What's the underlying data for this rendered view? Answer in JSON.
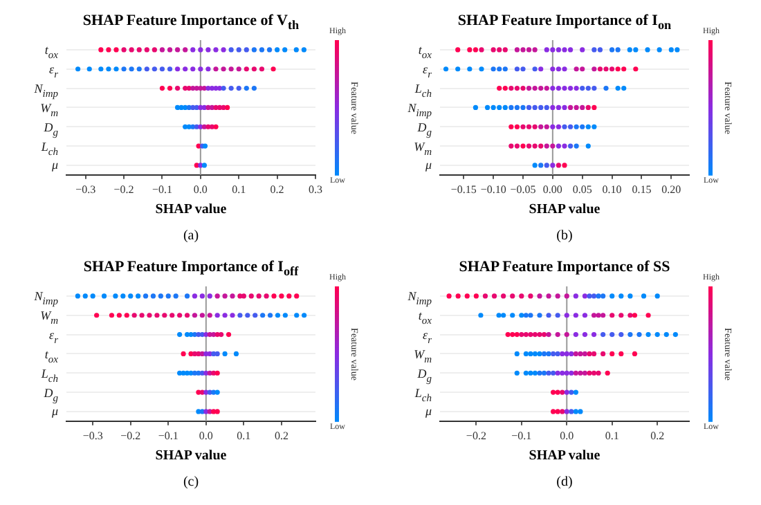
{
  "chart_data": [
    {
      "type": "scatter",
      "orientation": "horizontal",
      "title": "SHAP Feature Importance of V$_{th}$",
      "xlabel": "SHAP value",
      "clabel": "Feature value",
      "annotations": [
        "High",
        "Low",
        "(a)"
      ],
      "marker": "circle",
      "grid": "y",
      "categories": [
        "t$_{ox}$",
        "ε$_{r}$",
        "N$_{imp}$",
        "W$_{m}$",
        "D$_{g}$",
        "L$_{ch}$",
        "μ"
      ],
      "xlim": [
        -0.35,
        0.3
      ],
      "xticks": [
        {
          "value": -0.3,
          "label": "−0.3"
        },
        {
          "value": -0.2,
          "label": "−0.2"
        },
        {
          "value": -0.1,
          "label": "−0.1"
        },
        {
          "value": 0,
          "label": "0.0"
        },
        {
          "value": 0.1,
          "label": "0.1"
        },
        {
          "value": 0.2,
          "label": "0.2"
        },
        {
          "value": 0.3,
          "label": "0.3"
        }
      ],
      "ref_lines": [
        {
          "axis": "x",
          "value": 0,
          "color": "#999999"
        }
      ],
      "series": [
        {
          "x": [
            "t$_{ox}$",
            "t$_{ox}$",
            "t$_{ox}$",
            "t$_{ox}$",
            "t$_{ox}$",
            "t$_{ox}$",
            "t$_{ox}$",
            "t$_{ox}$",
            "t$_{ox}$",
            "t$_{ox}$",
            "t$_{ox}$",
            "t$_{ox}$",
            "t$_{ox}$",
            "t$_{ox}$",
            "t$_{ox}$",
            "t$_{ox}$",
            "t$_{ox}$",
            "t$_{ox}$",
            "t$_{ox}$",
            "t$_{ox}$",
            "t$_{ox}$",
            "t$_{ox}$",
            "t$_{ox}$",
            "t$_{ox}$",
            "t$_{ox}$",
            "t$_{ox}$",
            "t$_{ox}$"
          ],
          "values": [
            -0.26,
            -0.24,
            -0.22,
            -0.2,
            -0.18,
            -0.16,
            -0.14,
            -0.12,
            -0.1,
            -0.08,
            -0.06,
            -0.04,
            -0.02,
            0.0,
            0.02,
            0.04,
            0.06,
            0.08,
            0.1,
            0.12,
            0.14,
            0.16,
            0.18,
            0.2,
            0.22,
            0.25,
            0.27
          ],
          "colors": [
            "#ff0052",
            "#ff0052",
            "#ff0052",
            "#e8096f",
            "#e8096f",
            "#e8096f",
            "#e8096f",
            "#e8096f",
            "#c5169a",
            "#c5169a",
            "#c5169a",
            "#c5169a",
            "#8a2ce2",
            "#8a2ce2",
            "#8a2ce2",
            "#8a2ce2",
            "#8a2ce2",
            "#455bef",
            "#455bef",
            "#455bef",
            "#1c77f6",
            "#1c77f6",
            "#1c77f6",
            "#008afb",
            "#008afb",
            "#008afb",
            "#008afb"
          ]
        },
        {
          "x": [
            "ε$_{r}$",
            "ε$_{r}$",
            "ε$_{r}$",
            "ε$_{r}$",
            "ε$_{r}$",
            "ε$_{r}$",
            "ε$_{r}$",
            "ε$_{r}$",
            "ε$_{r}$",
            "ε$_{r}$",
            "ε$_{r}$",
            "ε$_{r}$",
            "ε$_{r}$",
            "ε$_{r}$",
            "ε$_{r}$",
            "ε$_{r}$",
            "ε$_{r}$",
            "ε$_{r}$",
            "ε$_{r}$",
            "ε$_{r}$",
            "ε$_{r}$",
            "ε$_{r}$",
            "ε$_{r}$",
            "ε$_{r}$",
            "ε$_{r}$"
          ],
          "values": [
            -0.32,
            -0.29,
            -0.26,
            -0.24,
            -0.22,
            -0.2,
            -0.18,
            -0.16,
            -0.14,
            -0.12,
            -0.1,
            -0.08,
            -0.06,
            -0.04,
            -0.02,
            0.0,
            0.02,
            0.04,
            0.06,
            0.08,
            0.1,
            0.12,
            0.14,
            0.16,
            0.19
          ],
          "colors": [
            "#008afb",
            "#008afb",
            "#008afb",
            "#008afb",
            "#008afb",
            "#1c77f6",
            "#1c77f6",
            "#1c77f6",
            "#455bef",
            "#455bef",
            "#455bef",
            "#455bef",
            "#8a2ce2",
            "#8a2ce2",
            "#8a2ce2",
            "#8a2ce2",
            "#8a2ce2",
            "#c5169a",
            "#c5169a",
            "#c5169a",
            "#c5169a",
            "#e8096f",
            "#e8096f",
            "#e8096f",
            "#ff0052"
          ]
        },
        {
          "x": [
            "N$_{imp}$",
            "N$_{imp}$",
            "N$_{imp}$",
            "N$_{imp}$",
            "N$_{imp}$",
            "N$_{imp}$",
            "N$_{imp}$",
            "N$_{imp}$",
            "N$_{imp}$",
            "N$_{imp}$",
            "N$_{imp}$",
            "N$_{imp}$",
            "N$_{imp}$",
            "N$_{imp}$",
            "N$_{imp}$",
            "N$_{imp}$",
            "N$_{imp}$",
            "N$_{imp}$"
          ],
          "values": [
            -0.1,
            -0.08,
            -0.06,
            -0.04,
            -0.03,
            -0.02,
            -0.01,
            0.0,
            0.01,
            0.02,
            0.03,
            0.04,
            0.05,
            0.06,
            0.08,
            0.1,
            0.12,
            0.14
          ],
          "colors": [
            "#ff0052",
            "#ff0052",
            "#e8096f",
            "#e8096f",
            "#e8096f",
            "#c5169a",
            "#c5169a",
            "#c5169a",
            "#c5169a",
            "#8a2ce2",
            "#8a2ce2",
            "#8a2ce2",
            "#8a2ce2",
            "#455bef",
            "#455bef",
            "#455bef",
            "#1c77f6",
            "#1c77f6"
          ]
        },
        {
          "x": [
            "W$_{m}$",
            "W$_{m}$",
            "W$_{m}$",
            "W$_{m}$",
            "W$_{m}$",
            "W$_{m}$",
            "W$_{m}$",
            "W$_{m}$",
            "W$_{m}$",
            "W$_{m}$",
            "W$_{m}$",
            "W$_{m}$",
            "W$_{m}$",
            "W$_{m}$"
          ],
          "values": [
            -0.06,
            -0.05,
            -0.04,
            -0.03,
            -0.02,
            -0.01,
            0.0,
            0.01,
            0.02,
            0.03,
            0.04,
            0.05,
            0.06,
            0.07
          ],
          "colors": [
            "#008afb",
            "#008afb",
            "#008afb",
            "#1c77f6",
            "#455bef",
            "#455bef",
            "#8a2ce2",
            "#8a2ce2",
            "#c5169a",
            "#c5169a",
            "#e8096f",
            "#e8096f",
            "#e8096f",
            "#ff0052"
          ]
        },
        {
          "x": [
            "D$_{g}$",
            "D$_{g}$",
            "D$_{g}$",
            "D$_{g}$",
            "D$_{g}$",
            "D$_{g}$",
            "D$_{g}$",
            "D$_{g}$",
            "D$_{g}$"
          ],
          "values": [
            -0.04,
            -0.03,
            -0.02,
            -0.01,
            0.0,
            0.01,
            0.02,
            0.03,
            0.04
          ],
          "colors": [
            "#008afb",
            "#008afb",
            "#1c77f6",
            "#455bef",
            "#8a2ce2",
            "#c5169a",
            "#e8096f",
            "#e8096f",
            "#ff0052"
          ]
        },
        {
          "x": [
            "L$_{ch}$",
            "L$_{ch}$",
            "L$_{ch}$"
          ],
          "values": [
            -0.005,
            0.005,
            0.012
          ],
          "colors": [
            "#ff0052",
            "#455bef",
            "#008afb"
          ]
        },
        {
          "x": [
            "μ",
            "μ",
            "μ"
          ],
          "values": [
            -0.01,
            0.0,
            0.01
          ],
          "colors": [
            "#ff0052",
            "#8a2ce2",
            "#008afb"
          ]
        }
      ]
    },
    {
      "type": "scatter",
      "orientation": "horizontal",
      "title": "SHAP Feature Importance of I$_{on}$",
      "xlabel": "SHAP value",
      "clabel": "Feature value",
      "annotations": [
        "High",
        "Low",
        "(b)"
      ],
      "marker": "circle",
      "grid": "y",
      "categories": [
        "t$_{ox}$",
        "ε$_{r}$",
        "L$_{ch}$",
        "N$_{imp}$",
        "D$_{g}$",
        "W$_{m}$",
        "μ"
      ],
      "xlim": [
        -0.19,
        0.23
      ],
      "xticks": [
        {
          "value": -0.15,
          "label": "−0.15"
        },
        {
          "value": -0.1,
          "label": "−0.10"
        },
        {
          "value": -0.05,
          "label": "−0.05"
        },
        {
          "value": 0,
          "label": "0.00"
        },
        {
          "value": 0.05,
          "label": "0.05"
        },
        {
          "value": 0.1,
          "label": "0.10"
        },
        {
          "value": 0.15,
          "label": "0.15"
        },
        {
          "value": 0.2,
          "label": "0.20"
        }
      ],
      "ref_lines": [
        {
          "axis": "x",
          "value": 0,
          "color": "#999999"
        }
      ],
      "series": [
        {
          "x": [
            "t$_{ox}$",
            "t$_{ox}$",
            "t$_{ox}$",
            "t$_{ox}$",
            "t$_{ox}$",
            "t$_{ox}$",
            "t$_{ox}$",
            "t$_{ox}$",
            "t$_{ox}$",
            "t$_{ox}$",
            "t$_{ox}$",
            "t$_{ox}$",
            "t$_{ox}$",
            "t$_{ox}$",
            "t$_{ox}$",
            "t$_{ox}$",
            "t$_{ox}$",
            "t$_{ox}$",
            "t$_{ox}$",
            "t$_{ox}$",
            "t$_{ox}$",
            "t$_{ox}$",
            "t$_{ox}$",
            "t$_{ox}$",
            "t$_{ox}$",
            "t$_{ox}$",
            "t$_{ox}$"
          ],
          "values": [
            -0.16,
            -0.14,
            -0.13,
            -0.12,
            -0.1,
            -0.09,
            -0.08,
            -0.06,
            -0.05,
            -0.04,
            -0.03,
            -0.01,
            0.0,
            0.01,
            0.02,
            0.03,
            0.05,
            0.07,
            0.08,
            0.1,
            0.11,
            0.13,
            0.14,
            0.16,
            0.18,
            0.2,
            0.21
          ],
          "colors": [
            "#ff0052",
            "#ff0052",
            "#ff0052",
            "#e8096f",
            "#e8096f",
            "#e8096f",
            "#e8096f",
            "#c5169a",
            "#c5169a",
            "#c5169a",
            "#c5169a",
            "#8a2ce2",
            "#8a2ce2",
            "#8a2ce2",
            "#8a2ce2",
            "#8a2ce2",
            "#8a2ce2",
            "#455bef",
            "#455bef",
            "#1c77f6",
            "#1c77f6",
            "#008afb",
            "#008afb",
            "#008afb",
            "#008afb",
            "#008afb",
            "#008afb"
          ]
        },
        {
          "x": [
            "ε$_{r}$",
            "ε$_{r}$",
            "ε$_{r}$",
            "ε$_{r}$",
            "ε$_{r}$",
            "ε$_{r}$",
            "ε$_{r}$",
            "ε$_{r}$",
            "ε$_{r}$",
            "ε$_{r}$",
            "ε$_{r}$",
            "ε$_{r}$",
            "ε$_{r}$",
            "ε$_{r}$",
            "ε$_{r}$",
            "ε$_{r}$",
            "ε$_{r}$",
            "ε$_{r}$",
            "ε$_{r}$",
            "ε$_{r}$",
            "ε$_{r}$",
            "ε$_{r}$",
            "ε$_{r}$"
          ],
          "values": [
            -0.18,
            -0.16,
            -0.14,
            -0.12,
            -0.1,
            -0.09,
            -0.08,
            -0.06,
            -0.05,
            -0.03,
            -0.02,
            0.0,
            0.01,
            0.02,
            0.04,
            0.05,
            0.07,
            0.08,
            0.09,
            0.1,
            0.11,
            0.12,
            0.14
          ],
          "colors": [
            "#008afb",
            "#008afb",
            "#008afb",
            "#008afb",
            "#1c77f6",
            "#1c77f6",
            "#1c77f6",
            "#455bef",
            "#455bef",
            "#455bef",
            "#8a2ce2",
            "#8a2ce2",
            "#8a2ce2",
            "#8a2ce2",
            "#c5169a",
            "#c5169a",
            "#c5169a",
            "#e8096f",
            "#e8096f",
            "#e8096f",
            "#ff0052",
            "#ff0052",
            "#ff0052"
          ]
        },
        {
          "x": [
            "L$_{ch}$",
            "L$_{ch}$",
            "L$_{ch}$",
            "L$_{ch}$",
            "L$_{ch}$",
            "L$_{ch}$",
            "L$_{ch}$",
            "L$_{ch}$",
            "L$_{ch}$",
            "L$_{ch}$",
            "L$_{ch}$",
            "L$_{ch}$",
            "L$_{ch}$",
            "L$_{ch}$",
            "L$_{ch}$",
            "L$_{ch}$",
            "L$_{ch}$",
            "L$_{ch}$",
            "L$_{ch}$",
            "L$_{ch}$"
          ],
          "values": [
            -0.09,
            -0.08,
            -0.07,
            -0.06,
            -0.05,
            -0.04,
            -0.03,
            -0.02,
            -0.01,
            0.0,
            0.01,
            0.02,
            0.03,
            0.04,
            0.05,
            0.06,
            0.07,
            0.09,
            0.11,
            0.12
          ],
          "colors": [
            "#ff0052",
            "#ff0052",
            "#e8096f",
            "#e8096f",
            "#e8096f",
            "#c5169a",
            "#c5169a",
            "#c5169a",
            "#c5169a",
            "#8a2ce2",
            "#8a2ce2",
            "#8a2ce2",
            "#8a2ce2",
            "#8a2ce2",
            "#455bef",
            "#455bef",
            "#455bef",
            "#1c77f6",
            "#008afb",
            "#008afb"
          ]
        },
        {
          "x": [
            "N$_{imp}$",
            "N$_{imp}$",
            "N$_{imp}$",
            "N$_{imp}$",
            "N$_{imp}$",
            "N$_{imp}$",
            "N$_{imp}$",
            "N$_{imp}$",
            "N$_{imp}$",
            "N$_{imp}$",
            "N$_{imp}$",
            "N$_{imp}$",
            "N$_{imp}$",
            "N$_{imp}$",
            "N$_{imp}$",
            "N$_{imp}$",
            "N$_{imp}$",
            "N$_{imp}$",
            "N$_{imp}$",
            "N$_{imp}$"
          ],
          "values": [
            -0.13,
            -0.11,
            -0.1,
            -0.09,
            -0.08,
            -0.07,
            -0.06,
            -0.05,
            -0.04,
            -0.03,
            -0.02,
            -0.01,
            0.0,
            0.01,
            0.02,
            0.03,
            0.04,
            0.05,
            0.06,
            0.07
          ],
          "colors": [
            "#008afb",
            "#008afb",
            "#008afb",
            "#008afb",
            "#008afb",
            "#1c77f6",
            "#1c77f6",
            "#1c77f6",
            "#455bef",
            "#455bef",
            "#455bef",
            "#455bef",
            "#8a2ce2",
            "#8a2ce2",
            "#8a2ce2",
            "#c5169a",
            "#c5169a",
            "#c5169a",
            "#e8096f",
            "#ff0052"
          ]
        },
        {
          "x": [
            "D$_{g}$",
            "D$_{g}$",
            "D$_{g}$",
            "D$_{g}$",
            "D$_{g}$",
            "D$_{g}$",
            "D$_{g}$",
            "D$_{g}$",
            "D$_{g}$",
            "D$_{g}$",
            "D$_{g}$",
            "D$_{g}$",
            "D$_{g}$",
            "D$_{g}$",
            "D$_{g}$"
          ],
          "values": [
            -0.07,
            -0.06,
            -0.05,
            -0.04,
            -0.03,
            -0.02,
            -0.01,
            0.0,
            0.01,
            0.02,
            0.03,
            0.04,
            0.05,
            0.06,
            0.07
          ],
          "colors": [
            "#ff0052",
            "#ff0052",
            "#e8096f",
            "#e8096f",
            "#e8096f",
            "#c5169a",
            "#c5169a",
            "#8a2ce2",
            "#8a2ce2",
            "#455bef",
            "#455bef",
            "#1c77f6",
            "#1c77f6",
            "#008afb",
            "#008afb"
          ]
        },
        {
          "x": [
            "W$_{m}$",
            "W$_{m}$",
            "W$_{m}$",
            "W$_{m}$",
            "W$_{m}$",
            "W$_{m}$",
            "W$_{m}$",
            "W$_{m}$",
            "W$_{m}$",
            "W$_{m}$",
            "W$_{m}$",
            "W$_{m}$",
            "W$_{m}$"
          ],
          "values": [
            -0.07,
            -0.06,
            -0.05,
            -0.04,
            -0.03,
            -0.02,
            -0.01,
            0.0,
            0.01,
            0.02,
            0.03,
            0.04,
            0.06
          ],
          "colors": [
            "#e8096f",
            "#e8096f",
            "#ff0052",
            "#e8096f",
            "#e8096f",
            "#e8096f",
            "#c5169a",
            "#c5169a",
            "#8a2ce2",
            "#8a2ce2",
            "#455bef",
            "#1c77f6",
            "#008afb"
          ]
        },
        {
          "x": [
            "μ",
            "μ",
            "μ",
            "μ",
            "μ",
            "μ"
          ],
          "values": [
            -0.03,
            -0.02,
            -0.01,
            0.0,
            0.01,
            0.02
          ],
          "colors": [
            "#008afb",
            "#1c77f6",
            "#455bef",
            "#8a2ce2",
            "#e8096f",
            "#ff0052"
          ]
        }
      ]
    },
    {
      "type": "scatter",
      "orientation": "horizontal",
      "title": "SHAP Feature Importance of I$_{off}$",
      "xlabel": "SHAP value",
      "clabel": "Feature value",
      "annotations": [
        "High",
        "Low",
        "(c)"
      ],
      "marker": "circle",
      "grid": "y",
      "categories": [
        "N$_{imp}$",
        "W$_{m}$",
        "ε$_{r}$",
        "t$_{ox}$",
        "L$_{ch}$",
        "D$_{g}$",
        "μ"
      ],
      "xlim": [
        -0.37,
        0.29
      ],
      "xticks": [
        {
          "value": -0.3,
          "label": "−0.3"
        },
        {
          "value": -0.2,
          "label": "−0.2"
        },
        {
          "value": -0.1,
          "label": "−0.1"
        },
        {
          "value": 0,
          "label": "0.0"
        },
        {
          "value": 0.1,
          "label": "0.1"
        },
        {
          "value": 0.2,
          "label": "0.2"
        }
      ],
      "ref_lines": [
        {
          "axis": "x",
          "value": 0,
          "color": "#999999"
        }
      ],
      "series": [
        {
          "x": [
            "N$_{imp}$",
            "N$_{imp}$",
            "N$_{imp}$",
            "N$_{imp}$",
            "N$_{imp}$",
            "N$_{imp}$",
            "N$_{imp}$",
            "N$_{imp}$",
            "N$_{imp}$",
            "N$_{imp}$",
            "N$_{imp}$",
            "N$_{imp}$",
            "N$_{imp}$",
            "N$_{imp}$",
            "N$_{imp}$",
            "N$_{imp}$",
            "N$_{imp}$",
            "N$_{imp}$",
            "N$_{imp}$",
            "N$_{imp}$",
            "N$_{imp}$",
            "N$_{imp}$",
            "N$_{imp}$",
            "N$_{imp}$",
            "N$_{imp}$",
            "N$_{imp}$",
            "N$_{imp}$",
            "N$_{imp}$",
            "N$_{imp}$"
          ],
          "values": [
            -0.34,
            -0.32,
            -0.3,
            -0.27,
            -0.24,
            -0.22,
            -0.2,
            -0.18,
            -0.16,
            -0.14,
            -0.12,
            -0.1,
            -0.08,
            -0.05,
            -0.03,
            -0.01,
            0.01,
            0.03,
            0.05,
            0.07,
            0.09,
            0.1,
            0.12,
            0.14,
            0.16,
            0.18,
            0.2,
            0.22,
            0.24
          ],
          "colors": [
            "#008afb",
            "#008afb",
            "#008afb",
            "#008afb",
            "#008afb",
            "#008afb",
            "#008afb",
            "#008afb",
            "#1c77f6",
            "#1c77f6",
            "#1c77f6",
            "#1c77f6",
            "#1c77f6",
            "#1c77f6",
            "#8a2ce2",
            "#8a2ce2",
            "#8a2ce2",
            "#c5169a",
            "#c5169a",
            "#c5169a",
            "#e8096f",
            "#e8096f",
            "#e8096f",
            "#e8096f",
            "#e8096f",
            "#ff0052",
            "#ff0052",
            "#ff0052",
            "#ff0052"
          ]
        },
        {
          "x": [
            "W$_{m}$",
            "W$_{m}$",
            "W$_{m}$",
            "W$_{m}$",
            "W$_{m}$",
            "W$_{m}$",
            "W$_{m}$",
            "W$_{m}$",
            "W$_{m}$",
            "W$_{m}$",
            "W$_{m}$",
            "W$_{m}$",
            "W$_{m}$",
            "W$_{m}$",
            "W$_{m}$",
            "W$_{m}$",
            "W$_{m}$",
            "W$_{m}$",
            "W$_{m}$",
            "W$_{m}$",
            "W$_{m}$",
            "W$_{m}$",
            "W$_{m}$",
            "W$_{m}$",
            "W$_{m}$",
            "W$_{m}$",
            "W$_{m}$"
          ],
          "values": [
            -0.29,
            -0.25,
            -0.23,
            -0.21,
            -0.19,
            -0.17,
            -0.15,
            -0.13,
            -0.11,
            -0.09,
            -0.07,
            -0.05,
            -0.03,
            -0.01,
            0.01,
            0.03,
            0.05,
            0.07,
            0.09,
            0.11,
            0.13,
            0.15,
            0.17,
            0.19,
            0.21,
            0.24,
            0.26
          ],
          "colors": [
            "#ff0052",
            "#ff0052",
            "#ff0052",
            "#ff0052",
            "#e8096f",
            "#e8096f",
            "#e8096f",
            "#e8096f",
            "#e8096f",
            "#e8096f",
            "#e8096f",
            "#e8096f",
            "#c5169a",
            "#c5169a",
            "#c5169a",
            "#8a2ce2",
            "#8a2ce2",
            "#8a2ce2",
            "#455bef",
            "#455bef",
            "#455bef",
            "#1c77f6",
            "#1c77f6",
            "#008afb",
            "#008afb",
            "#008afb",
            "#008afb"
          ]
        },
        {
          "x": [
            "ε$_{r}$",
            "ε$_{r}$",
            "ε$_{r}$",
            "ε$_{r}$",
            "ε$_{r}$",
            "ε$_{r}$",
            "ε$_{r}$",
            "ε$_{r}$",
            "ε$_{r}$",
            "ε$_{r}$",
            "ε$_{r}$",
            "ε$_{r}$"
          ],
          "values": [
            -0.07,
            -0.05,
            -0.04,
            -0.03,
            -0.02,
            -0.01,
            0.0,
            0.01,
            0.02,
            0.03,
            0.04,
            0.06
          ],
          "colors": [
            "#008afb",
            "#008afb",
            "#008afb",
            "#1c77f6",
            "#455bef",
            "#455bef",
            "#8a2ce2",
            "#c5169a",
            "#c5169a",
            "#e8096f",
            "#e8096f",
            "#ff0052"
          ]
        },
        {
          "x": [
            "t$_{ox}$",
            "t$_{ox}$",
            "t$_{ox}$",
            "t$_{ox}$",
            "t$_{ox}$",
            "t$_{ox}$",
            "t$_{ox}$",
            "t$_{ox}$",
            "t$_{ox}$",
            "t$_{ox}$",
            "t$_{ox}$"
          ],
          "values": [
            -0.06,
            -0.04,
            -0.03,
            -0.02,
            -0.01,
            0.0,
            0.01,
            0.02,
            0.03,
            0.05,
            0.08
          ],
          "colors": [
            "#ff0052",
            "#ff0052",
            "#e8096f",
            "#e8096f",
            "#c5169a",
            "#8a2ce2",
            "#8a2ce2",
            "#455bef",
            "#455bef",
            "#008afb",
            "#008afb"
          ]
        },
        {
          "x": [
            "L$_{ch}$",
            "L$_{ch}$",
            "L$_{ch}$",
            "L$_{ch}$",
            "L$_{ch}$",
            "L$_{ch}$",
            "L$_{ch}$",
            "L$_{ch}$",
            "L$_{ch}$",
            "L$_{ch}$",
            "L$_{ch}$"
          ],
          "values": [
            -0.07,
            -0.06,
            -0.05,
            -0.04,
            -0.03,
            -0.02,
            -0.01,
            0.0,
            0.01,
            0.02,
            0.03
          ],
          "colors": [
            "#008afb",
            "#008afb",
            "#008afb",
            "#008afb",
            "#1c77f6",
            "#1c77f6",
            "#455bef",
            "#8a2ce2",
            "#c5169a",
            "#e8096f",
            "#ff0052"
          ]
        },
        {
          "x": [
            "D$_{g}$",
            "D$_{g}$",
            "D$_{g}$",
            "D$_{g}$",
            "D$_{g}$",
            "D$_{g}$"
          ],
          "values": [
            -0.02,
            -0.01,
            0.0,
            0.01,
            0.02,
            0.03
          ],
          "colors": [
            "#ff0052",
            "#e8096f",
            "#8a2ce2",
            "#455bef",
            "#1c77f6",
            "#008afb"
          ]
        },
        {
          "x": [
            "μ",
            "μ",
            "μ",
            "μ",
            "μ",
            "μ"
          ],
          "values": [
            -0.02,
            -0.01,
            0.0,
            0.01,
            0.02,
            0.03
          ],
          "colors": [
            "#008afb",
            "#1c77f6",
            "#8a2ce2",
            "#c5169a",
            "#ff0052",
            "#ff0052"
          ]
        }
      ]
    },
    {
      "type": "scatter",
      "orientation": "horizontal",
      "title": "SHAP Feature Importance of SS",
      "xlabel": "SHAP value",
      "clabel": "Feature value",
      "annotations": [
        "High",
        "Low",
        "(d)"
      ],
      "marker": "circle",
      "grid": "y",
      "categories": [
        "N$_{imp}$",
        "t$_{ox}$",
        "ε$_{r}$",
        "W$_{m}$",
        "D$_{g}$",
        "L$_{ch}$",
        "μ"
      ],
      "xlim": [
        -0.28,
        0.27
      ],
      "xticks": [
        {
          "value": -0.2,
          "label": "−0.2"
        },
        {
          "value": -0.1,
          "label": "−0.1"
        },
        {
          "value": 0,
          "label": "0.0"
        },
        {
          "value": 0.1,
          "label": "0.1"
        },
        {
          "value": 0.2,
          "label": "0.2"
        }
      ],
      "ref_lines": [
        {
          "axis": "x",
          "value": 0,
          "color": "#999999"
        }
      ],
      "series": [
        {
          "x": [
            "N$_{imp}$",
            "N$_{imp}$",
            "N$_{imp}$",
            "N$_{imp}$",
            "N$_{imp}$",
            "N$_{imp}$",
            "N$_{imp}$",
            "N$_{imp}$",
            "N$_{imp}$",
            "N$_{imp}$",
            "N$_{imp}$",
            "N$_{imp}$",
            "N$_{imp}$",
            "N$_{imp}$",
            "N$_{imp}$",
            "N$_{imp}$",
            "N$_{imp}$",
            "N$_{imp}$",
            "N$_{imp}$",
            "N$_{imp}$",
            "N$_{imp}$",
            "N$_{imp}$",
            "N$_{imp}$",
            "N$_{imp}$",
            "N$_{imp}$"
          ],
          "values": [
            -0.26,
            -0.24,
            -0.22,
            -0.2,
            -0.18,
            -0.16,
            -0.14,
            -0.12,
            -0.1,
            -0.08,
            -0.06,
            -0.04,
            -0.02,
            0.0,
            0.02,
            0.04,
            0.05,
            0.06,
            0.07,
            0.08,
            0.1,
            0.12,
            0.14,
            0.17,
            0.2
          ],
          "colors": [
            "#ff0052",
            "#ff0052",
            "#ff0052",
            "#ff0052",
            "#e8096f",
            "#e8096f",
            "#e8096f",
            "#e8096f",
            "#e8096f",
            "#e8096f",
            "#c5169a",
            "#c5169a",
            "#c5169a",
            "#c5169a",
            "#8a2ce2",
            "#8a2ce2",
            "#455bef",
            "#455bef",
            "#1c77f6",
            "#1c77f6",
            "#008afb",
            "#008afb",
            "#008afb",
            "#008afb",
            "#008afb"
          ]
        },
        {
          "x": [
            "t$_{ox}$",
            "t$_{ox}$",
            "t$_{ox}$",
            "t$_{ox}$",
            "t$_{ox}$",
            "t$_{ox}$",
            "t$_{ox}$",
            "t$_{ox}$",
            "t$_{ox}$",
            "t$_{ox}$",
            "t$_{ox}$",
            "t$_{ox}$",
            "t$_{ox}$",
            "t$_{ox}$",
            "t$_{ox}$",
            "t$_{ox}$",
            "t$_{ox}$",
            "t$_{ox}$",
            "t$_{ox}$",
            "t$_{ox}$",
            "t$_{ox}$"
          ],
          "values": [
            -0.19,
            -0.15,
            -0.14,
            -0.12,
            -0.1,
            -0.09,
            -0.08,
            -0.06,
            -0.04,
            -0.02,
            0.0,
            0.02,
            0.04,
            0.06,
            0.07,
            0.08,
            0.1,
            0.12,
            0.14,
            0.15,
            0.18
          ],
          "colors": [
            "#008afb",
            "#008afb",
            "#008afb",
            "#008afb",
            "#008afb",
            "#1c77f6",
            "#1c77f6",
            "#1c77f6",
            "#455bef",
            "#455bef",
            "#8a2ce2",
            "#8a2ce2",
            "#8a2ce2",
            "#c5169a",
            "#c5169a",
            "#c5169a",
            "#e8096f",
            "#e8096f",
            "#e8096f",
            "#ff0052",
            "#ff0052"
          ]
        },
        {
          "x": [
            "ε$_{r}$",
            "ε$_{r}$",
            "ε$_{r}$",
            "ε$_{r}$",
            "ε$_{r}$",
            "ε$_{r}$",
            "ε$_{r}$",
            "ε$_{r}$",
            "ε$_{r}$",
            "ε$_{r}$",
            "ε$_{r}$",
            "ε$_{r}$",
            "ε$_{r}$",
            "ε$_{r}$",
            "ε$_{r}$",
            "ε$_{r}$",
            "ε$_{r}$",
            "ε$_{r}$",
            "ε$_{r}$",
            "ε$_{r}$",
            "ε$_{r}$",
            "ε$_{r}$",
            "ε$_{r}$",
            "ε$_{r}$"
          ],
          "values": [
            -0.13,
            -0.12,
            -0.11,
            -0.1,
            -0.09,
            -0.08,
            -0.07,
            -0.06,
            -0.05,
            -0.04,
            -0.02,
            0.0,
            0.02,
            0.04,
            0.06,
            0.08,
            0.1,
            0.12,
            0.14,
            0.16,
            0.18,
            0.2,
            0.22,
            0.24
          ],
          "colors": [
            "#ff0052",
            "#ff0052",
            "#ff0052",
            "#e8096f",
            "#e8096f",
            "#e8096f",
            "#e8096f",
            "#e8096f",
            "#e8096f",
            "#c5169a",
            "#c5169a",
            "#c5169a",
            "#8a2ce2",
            "#8a2ce2",
            "#8a2ce2",
            "#455bef",
            "#455bef",
            "#455bef",
            "#1c77f6",
            "#1c77f6",
            "#008afb",
            "#008afb",
            "#008afb",
            "#008afb"
          ]
        },
        {
          "x": [
            "W$_{m}$",
            "W$_{m}$",
            "W$_{m}$",
            "W$_{m}$",
            "W$_{m}$",
            "W$_{m}$",
            "W$_{m}$",
            "W$_{m}$",
            "W$_{m}$",
            "W$_{m}$",
            "W$_{m}$",
            "W$_{m}$",
            "W$_{m}$",
            "W$_{m}$",
            "W$_{m}$",
            "W$_{m}$",
            "W$_{m}$",
            "W$_{m}$",
            "W$_{m}$",
            "W$_{m}$",
            "W$_{m}$"
          ],
          "values": [
            -0.11,
            -0.09,
            -0.08,
            -0.07,
            -0.06,
            -0.05,
            -0.04,
            -0.03,
            -0.02,
            -0.01,
            0.0,
            0.01,
            0.02,
            0.03,
            0.04,
            0.05,
            0.06,
            0.08,
            0.1,
            0.12,
            0.15
          ],
          "colors": [
            "#008afb",
            "#008afb",
            "#008afb",
            "#008afb",
            "#008afb",
            "#1c77f6",
            "#1c77f6",
            "#455bef",
            "#455bef",
            "#8a2ce2",
            "#8a2ce2",
            "#8a2ce2",
            "#c5169a",
            "#c5169a",
            "#c5169a",
            "#e8096f",
            "#e8096f",
            "#e8096f",
            "#ff0052",
            "#ff0052",
            "#ff0052"
          ]
        },
        {
          "x": [
            "D$_{g}$",
            "D$_{g}$",
            "D$_{g}$",
            "D$_{g}$",
            "D$_{g}$",
            "D$_{g}$",
            "D$_{g}$",
            "D$_{g}$",
            "D$_{g}$",
            "D$_{g}$",
            "D$_{g}$",
            "D$_{g}$",
            "D$_{g}$",
            "D$_{g}$",
            "D$_{g}$",
            "D$_{g}$",
            "D$_{g}$",
            "D$_{g}$",
            "D$_{g}$"
          ],
          "values": [
            -0.11,
            -0.09,
            -0.08,
            -0.07,
            -0.06,
            -0.05,
            -0.04,
            -0.03,
            -0.02,
            -0.01,
            0.0,
            0.01,
            0.02,
            0.03,
            0.04,
            0.05,
            0.06,
            0.07,
            0.09
          ],
          "colors": [
            "#008afb",
            "#008afb",
            "#008afb",
            "#008afb",
            "#1c77f6",
            "#1c77f6",
            "#455bef",
            "#455bef",
            "#8a2ce2",
            "#8a2ce2",
            "#8a2ce2",
            "#8a2ce2",
            "#c5169a",
            "#c5169a",
            "#c5169a",
            "#e8096f",
            "#e8096f",
            "#e8096f",
            "#ff0052"
          ]
        },
        {
          "x": [
            "L$_{ch}$",
            "L$_{ch}$",
            "L$_{ch}$",
            "L$_{ch}$",
            "L$_{ch}$",
            "L$_{ch}$"
          ],
          "values": [
            -0.03,
            -0.02,
            -0.01,
            0.0,
            0.01,
            0.02
          ],
          "colors": [
            "#ff0052",
            "#ff0052",
            "#e8096f",
            "#8a2ce2",
            "#455bef",
            "#008afb"
          ]
        },
        {
          "x": [
            "μ",
            "μ",
            "μ",
            "μ",
            "μ",
            "μ",
            "μ"
          ],
          "values": [
            -0.03,
            -0.02,
            -0.01,
            0.0,
            0.01,
            0.02,
            0.03
          ],
          "colors": [
            "#ff0052",
            "#ff0052",
            "#e8096f",
            "#8a2ce2",
            "#455bef",
            "#008afb",
            "#008afb"
          ]
        }
      ]
    }
  ]
}
